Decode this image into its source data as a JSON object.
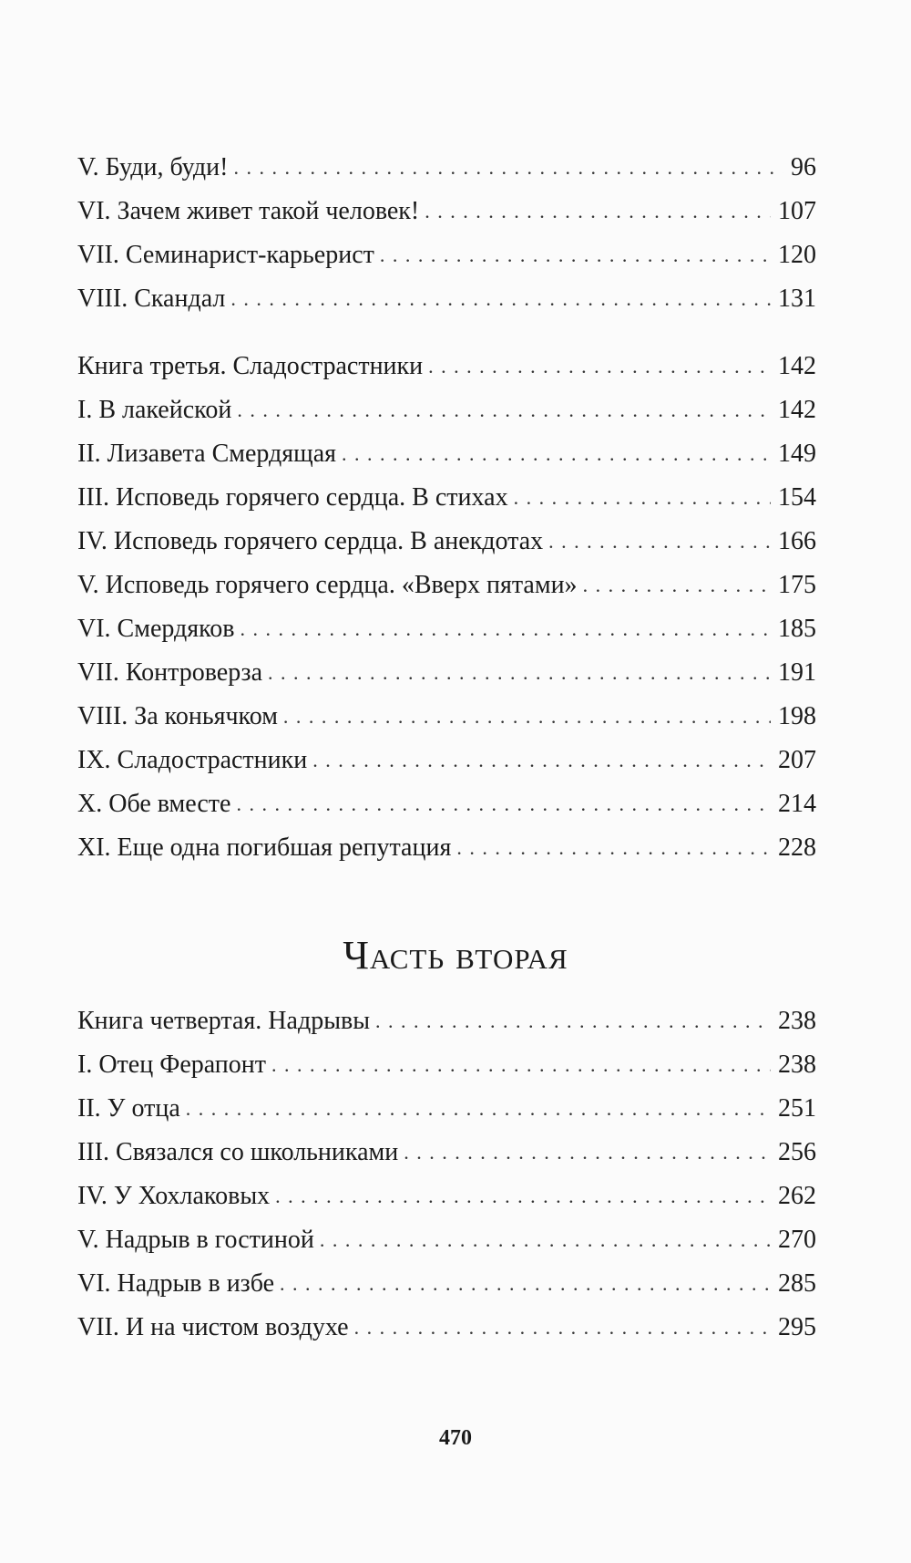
{
  "sections": [
    {
      "entries": [
        {
          "title": "V. Буди, буди!",
          "page": "96"
        },
        {
          "title": "VI. Зачем живет такой человек!",
          "page": "107"
        },
        {
          "title": "VII. Семинарист-карьерист",
          "page": "120"
        },
        {
          "title": "VIII. Скандал",
          "page": "131"
        }
      ]
    },
    {
      "entries": [
        {
          "title": "Книга третья. Сладострастники",
          "page": "142"
        },
        {
          "title": "I. В лакейской",
          "page": "142"
        },
        {
          "title": "II. Лизавета Смердящая",
          "page": "149"
        },
        {
          "title": "III. Исповедь горячего сердца. В стихах",
          "page": "154"
        },
        {
          "title": "IV. Исповедь горячего сердца. В анекдотах",
          "page": "166"
        },
        {
          "title": "V. Исповедь горячего сердца. «Вверх пятами»",
          "page": "175"
        },
        {
          "title": "VI. Смердяков",
          "page": "185"
        },
        {
          "title": "VII. Контроверза",
          "page": "191"
        },
        {
          "title": "VIII. За коньячком",
          "page": "198"
        },
        {
          "title": "IX. Сладострастники",
          "page": "207"
        },
        {
          "title": "X. Обе вместе",
          "page": "214"
        },
        {
          "title": "XI. Еще одна погибшая репутация",
          "page": "228"
        }
      ]
    },
    {
      "entries": [
        {
          "title": "Книга четвертая. Надрывы",
          "page": "238"
        },
        {
          "title": "I. Отец Ферапонт",
          "page": "238"
        },
        {
          "title": "II. У отца",
          "page": "251"
        },
        {
          "title": "III. Связался со школьниками",
          "page": "256"
        },
        {
          "title": "IV. У Хохлаковых",
          "page": "262"
        },
        {
          "title": "V. Надрыв в гостиной",
          "page": "270"
        },
        {
          "title": "VI. Надрыв в избе",
          "page": "285"
        },
        {
          "title": "VII. И на чистом воздухе",
          "page": "295"
        }
      ]
    }
  ],
  "part_heading": "Часть вторая",
  "page_number": "470"
}
